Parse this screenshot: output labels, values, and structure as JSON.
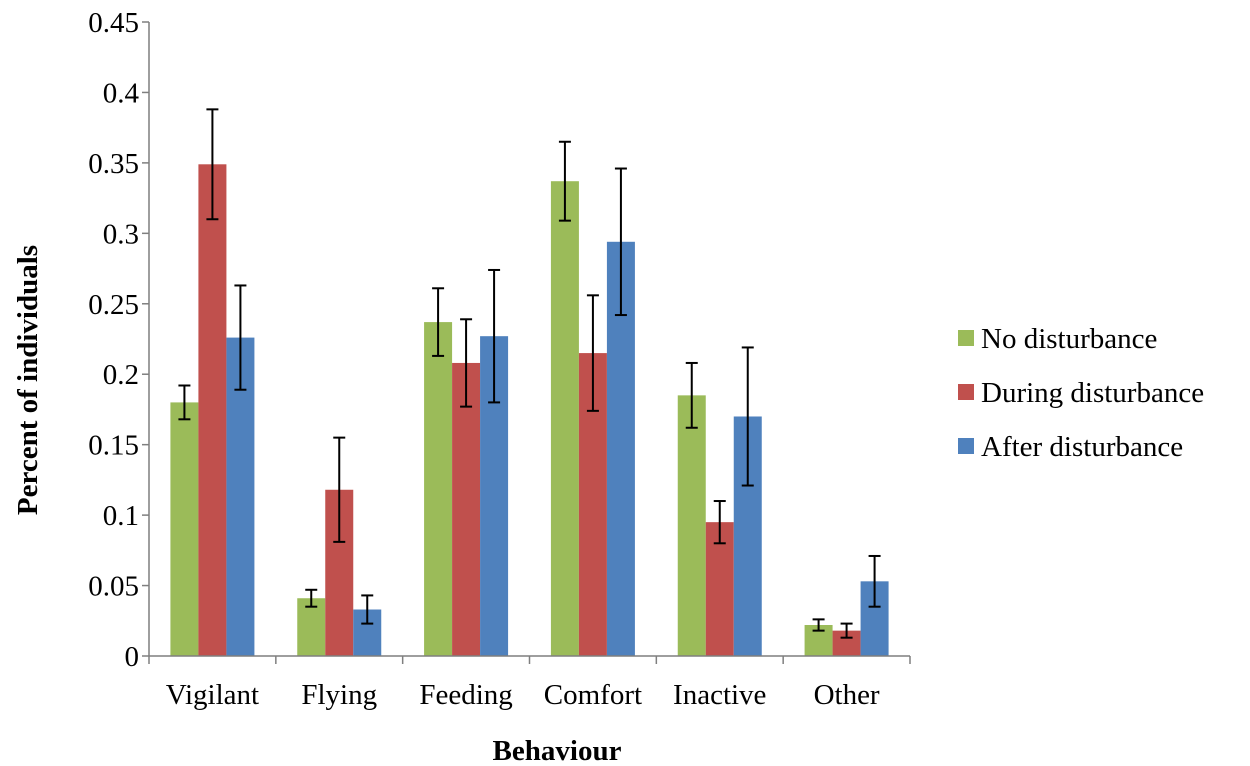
{
  "chart_data": {
    "type": "bar",
    "xlabel": "Behaviour",
    "ylabel": "Percent of individuals",
    "ylim": [
      0,
      0.45
    ],
    "yticks": [
      "0",
      "0.05",
      "0.1",
      "0.15",
      "0.2",
      "0.25",
      "0.3",
      "0.35",
      "0.4",
      "0.45"
    ],
    "categories": [
      "Vigilant",
      "Flying",
      "Feeding",
      "Comfort",
      "Inactive",
      "Other"
    ],
    "grid": false,
    "legend_position": "right",
    "series": [
      {
        "name": "No disturbance",
        "color": "#9bbb59",
        "values": [
          0.18,
          0.041,
          0.237,
          0.337,
          0.185,
          0.022
        ],
        "errors": [
          0.012,
          0.006,
          0.024,
          0.028,
          0.023,
          0.004
        ]
      },
      {
        "name": "During disturbance",
        "color": "#c0504d",
        "values": [
          0.349,
          0.118,
          0.208,
          0.215,
          0.095,
          0.018
        ],
        "errors": [
          0.039,
          0.037,
          0.031,
          0.041,
          0.015,
          0.005
        ]
      },
      {
        "name": "After disturbance",
        "color": "#4f81bd",
        "values": [
          0.226,
          0.033,
          0.227,
          0.294,
          0.17,
          0.053
        ],
        "errors": [
          0.037,
          0.01,
          0.047,
          0.052,
          0.049,
          0.018
        ]
      }
    ]
  }
}
